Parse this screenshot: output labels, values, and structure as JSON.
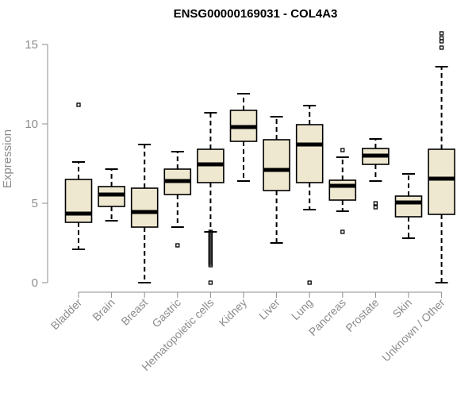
{
  "chart_data": {
    "type": "boxplot",
    "title": "ENSG00000169031 - COL4A3",
    "xlabel": "",
    "ylabel": "Expression",
    "ylim": [
      0,
      15.8
    ],
    "yticks": [
      0,
      5,
      10,
      15
    ],
    "grid": false,
    "box_fill": "#efe8d0",
    "box_stroke": "#000000",
    "axis_color": "#8c8c8c",
    "categories": [
      "Bladder",
      "Brain",
      "Breast",
      "Gastric",
      "Hematopoietic cells",
      "Kidney",
      "Liver",
      "Lung",
      "Pancreas",
      "Prostate",
      "Skin",
      "Unknown / Other"
    ],
    "boxes": [
      {
        "min": 2.1,
        "q1": 3.8,
        "median": 4.35,
        "q3": 6.5,
        "max": 7.6,
        "outliers": [
          11.2
        ]
      },
      {
        "min": 3.9,
        "q1": 4.8,
        "median": 5.55,
        "q3": 6.05,
        "max": 7.15,
        "outliers": []
      },
      {
        "min": 0.0,
        "q1": 3.5,
        "median": 4.45,
        "q3": 5.95,
        "max": 8.7,
        "outliers": []
      },
      {
        "min": 3.5,
        "q1": 5.55,
        "median": 6.4,
        "q3": 7.15,
        "max": 8.25,
        "outliers": [
          2.35
        ]
      },
      {
        "min": 3.2,
        "q1": 6.3,
        "median": 7.45,
        "q3": 8.4,
        "max": 10.7,
        "outliers": [
          3.2,
          3.1,
          3.0,
          2.9,
          2.8,
          2.7,
          2.6,
          2.5,
          2.4,
          2.3,
          2.2,
          2.1,
          2.0,
          1.9,
          1.8,
          1.7,
          1.6,
          1.5,
          1.4,
          1.3,
          1.2,
          1.1,
          0.0
        ]
      },
      {
        "min": 6.4,
        "q1": 8.9,
        "median": 9.8,
        "q3": 10.85,
        "max": 11.9,
        "outliers": []
      },
      {
        "min": 2.5,
        "q1": 5.8,
        "median": 7.1,
        "q3": 9.0,
        "max": 10.45,
        "outliers": []
      },
      {
        "min": 4.6,
        "q1": 6.3,
        "median": 8.7,
        "q3": 9.95,
        "max": 11.15,
        "outliers": [
          0.0
        ]
      },
      {
        "min": 4.5,
        "q1": 5.2,
        "median": 6.1,
        "q3": 6.45,
        "max": 7.9,
        "outliers": [
          8.35,
          3.2
        ]
      },
      {
        "min": 6.4,
        "q1": 7.45,
        "median": 8.0,
        "q3": 8.45,
        "max": 9.05,
        "outliers": [
          5.0,
          4.75
        ]
      },
      {
        "min": 2.8,
        "q1": 4.15,
        "median": 5.05,
        "q3": 5.45,
        "max": 6.85,
        "outliers": []
      },
      {
        "min": 0.0,
        "q1": 4.3,
        "median": 6.55,
        "q3": 8.4,
        "max": 13.6,
        "outliers": [
          15.7,
          15.4,
          15.2,
          14.8
        ]
      }
    ]
  }
}
